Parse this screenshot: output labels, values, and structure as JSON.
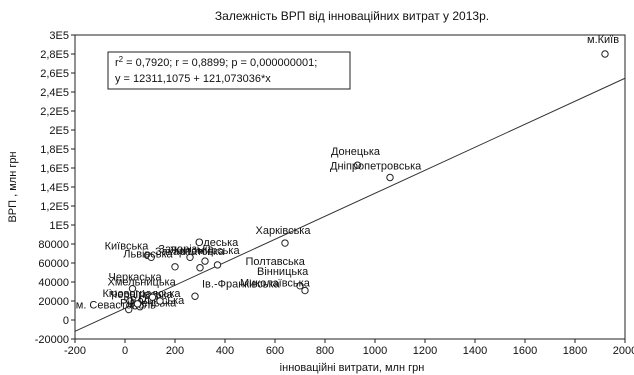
{
  "chart_data": {
    "type": "scatter",
    "title": "Залежність ВРП від інноваційних витрат у 2013р.",
    "xlabel": "інноваційні витрати, млн грн",
    "ylabel": "ВРП , млн грн",
    "xlim": [
      -200,
      2000
    ],
    "ylim": [
      -20000,
      300000
    ],
    "x_ticks": [
      -200,
      0,
      200,
      400,
      600,
      800,
      1000,
      1200,
      1400,
      1600,
      1800,
      2000
    ],
    "y_ticks": [
      {
        "value": -20000,
        "label": "-20000"
      },
      {
        "value": 0,
        "label": "0"
      },
      {
        "value": 20000,
        "label": "20000"
      },
      {
        "value": 40000,
        "label": "40000"
      },
      {
        "value": 60000,
        "label": "60000"
      },
      {
        "value": 80000,
        "label": "80000"
      },
      {
        "value": 100000,
        "label": "1E5"
      },
      {
        "value": 120000,
        "label": "1,2E5"
      },
      {
        "value": 140000,
        "label": "1,4E5"
      },
      {
        "value": 160000,
        "label": "1,6E5"
      },
      {
        "value": 180000,
        "label": "1,8E5"
      },
      {
        "value": 200000,
        "label": "2E5"
      },
      {
        "value": 220000,
        "label": "2,2E5"
      },
      {
        "value": 240000,
        "label": "2,4E5"
      },
      {
        "value": 260000,
        "label": "2,6E5"
      },
      {
        "value": 280000,
        "label": "2,8E5"
      },
      {
        "value": 300000,
        "label": "3E5"
      }
    ],
    "regression": {
      "intercept": 12311.1075,
      "slope": 121.073036
    },
    "stats": {
      "r2_prefix": "r",
      "r2_sup": "2",
      "line1_rest": " = 0,7920;  r = 0,8899; p = 0,000000001;",
      "line2": "y = 12311,1075 + 121,073036*x"
    },
    "points": [
      {
        "x": 1920,
        "y": 280000,
        "label": "м.Київ"
      },
      {
        "x": 930,
        "y": 163000,
        "label": "Донецька"
      },
      {
        "x": 1060,
        "y": 150000,
        "label": "Дніпропетровська"
      },
      {
        "x": 640,
        "y": 81000,
        "label": "Харківська"
      },
      {
        "x": 700,
        "y": 36000,
        "label": "Вінницька"
      },
      {
        "x": 720,
        "y": 31000,
        "label": "Миколаївська"
      },
      {
        "x": 90,
        "y": 68000,
        "label": "Київська"
      },
      {
        "x": 105,
        "y": 66000,
        "label": "Львівська"
      },
      {
        "x": 260,
        "y": 66000,
        "label": "Запорізька"
      },
      {
        "x": 320,
        "y": 62000,
        "label": "Одеська"
      },
      {
        "x": 370,
        "y": 58000,
        "label": "Полтавська"
      },
      {
        "x": 200,
        "y": 56000,
        "label": "Житомирська"
      },
      {
        "x": 300,
        "y": 55000,
        "label": "Закарпатська"
      },
      {
        "x": 30,
        "y": 33000,
        "label": "Черкаська"
      },
      {
        "x": 280,
        "y": 25000,
        "label": "Ів.-Франківська"
      },
      {
        "x": 130,
        "y": 25000,
        "label": "Хмельницька"
      },
      {
        "x": 70,
        "y": 22000,
        "label": "Кіровоградська"
      },
      {
        "x": 20,
        "y": 20000,
        "label": "Чернігівська"
      },
      {
        "x": 40,
        "y": 15000,
        "label": "Волинська"
      },
      {
        "x": 60,
        "y": 14000,
        "label": "Рівненська"
      },
      {
        "x": 15,
        "y": 11000,
        "label": "м. Севастополь"
      },
      {
        "x": 110,
        "y": 24000,
        "label": ""
      },
      {
        "x": 50,
        "y": 17000,
        "label": ""
      },
      {
        "x": 140,
        "y": 20000,
        "label": ""
      }
    ]
  }
}
